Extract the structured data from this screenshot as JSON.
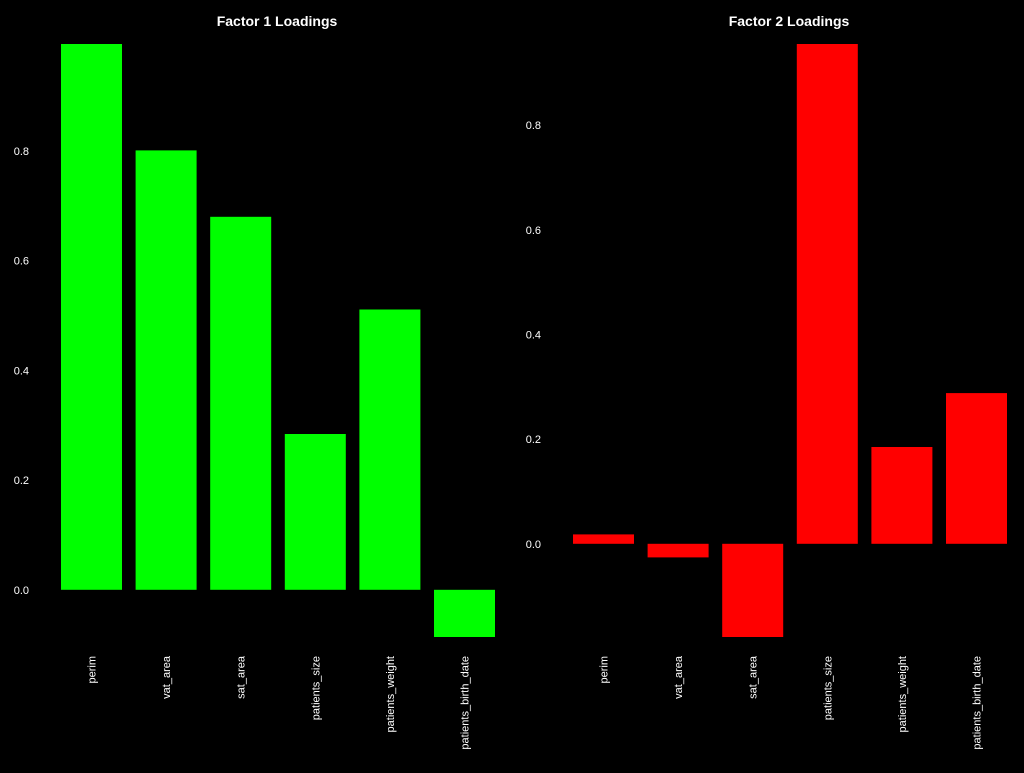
{
  "colors": {
    "background": "#000000",
    "text": "#ffffff"
  },
  "chart_data": [
    {
      "type": "bar",
      "title": "Factor 1 Loadings",
      "color": "#00ff00",
      "categories": [
        "perim",
        "vat_area",
        "sat_area",
        "patients_size",
        "patients_weight",
        "patients_birth_date"
      ],
      "values": [
        0.995,
        0.801,
        0.68,
        0.284,
        0.511,
        -0.086
      ],
      "yticks": [
        0.0,
        0.2,
        0.4,
        0.6,
        0.8
      ],
      "ytick_labels": [
        "0.0",
        "0.2",
        "0.4",
        "0.6",
        "0.8"
      ],
      "ylim": [
        -0.086,
        0.995
      ],
      "grid": false,
      "legend": false
    },
    {
      "type": "bar",
      "title": "Factor 2 Loadings",
      "color": "#ff0000",
      "categories": [
        "perim",
        "vat_area",
        "sat_area",
        "patients_size",
        "patients_weight",
        "patients_birth_date"
      ],
      "values": [
        0.018,
        -0.026,
        -0.178,
        0.955,
        0.185,
        0.288
      ],
      "yticks": [
        0.0,
        0.2,
        0.4,
        0.6,
        0.8
      ],
      "ytick_labels": [
        "0.0",
        "0.2",
        "0.4",
        "0.6",
        "0.8"
      ],
      "ylim": [
        -0.178,
        0.955
      ],
      "grid": false,
      "legend": false
    }
  ]
}
